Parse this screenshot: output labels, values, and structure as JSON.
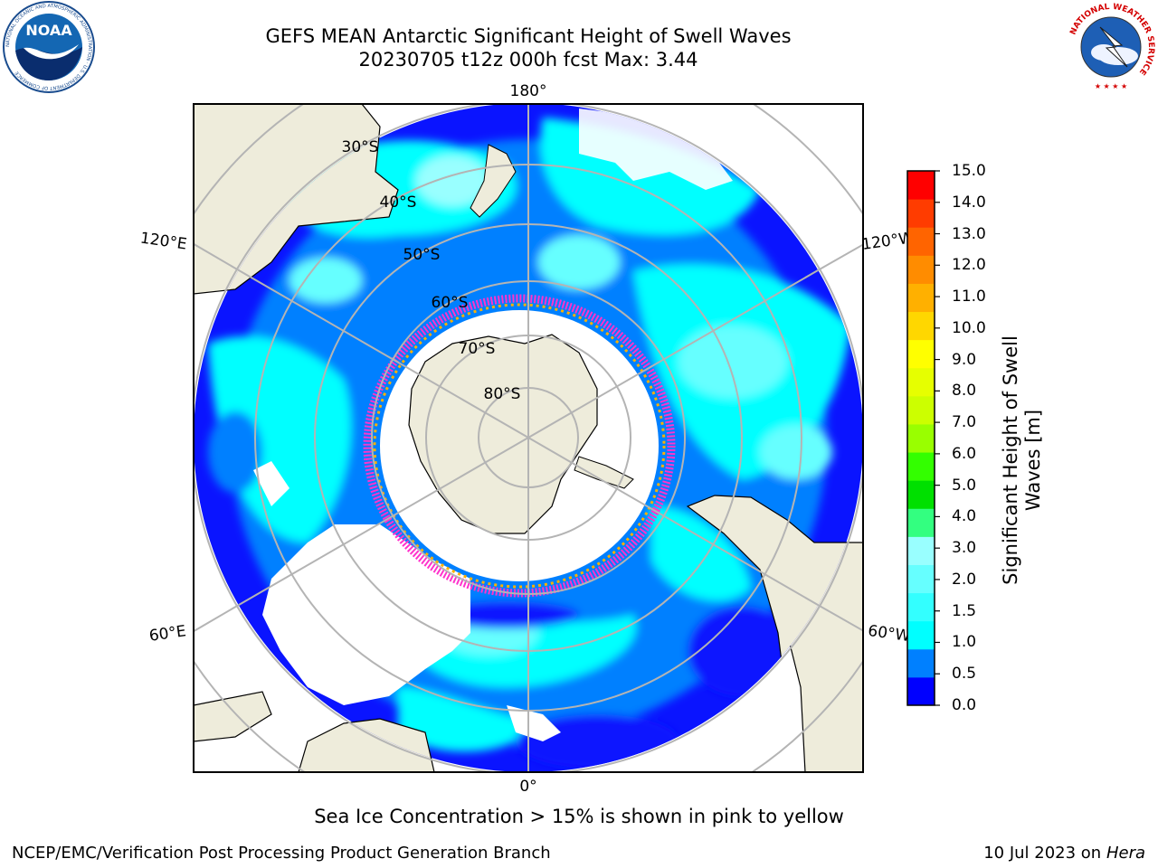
{
  "header": {
    "title_line1": "GEFS MEAN Antarctic Significant Height of Swell Waves",
    "title_line2": "20230705 t12z 000h fcst   Max: 3.44"
  },
  "logos": {
    "left": "noaa-logo",
    "left_text": "NOAA",
    "left_ring_text": "NATIONAL OCEANIC AND ATMOSPHERIC ADMINISTRATION · U.S. DEPARTMENT OF COMMERCE",
    "right": "national-weather-service-logo",
    "right_ring_text": "NATIONAL WEATHER SERVICE"
  },
  "map": {
    "projection": "south-polar-stereographic",
    "longitude_labels": {
      "top": "180°",
      "upper_left": "120°E",
      "upper_right": "120°W",
      "lower_left": "60°E",
      "lower_right": "60°W",
      "bottom": "0°"
    },
    "latitude_labels": [
      "30°S",
      "40°S",
      "50°S",
      "60°S",
      "70°S",
      "80°S"
    ],
    "colors": {
      "land": "#eeecdb",
      "ocean_no_data": "#ffffff",
      "graticule": "#b4b4b4"
    }
  },
  "colorbar": {
    "title_line1": "Significant Height of Swell",
    "title_line2": "Waves [m]",
    "ticks": [
      "15.0",
      "14.0",
      "13.0",
      "12.0",
      "11.0",
      "10.0",
      "9.0",
      "8.0",
      "7.0",
      "6.0",
      "5.0",
      "4.0",
      "3.0",
      "2.0",
      "1.5",
      "1.0",
      "0.5",
      "0.0"
    ],
    "colors_bottom_to_top": [
      "#0000ff",
      "#0080ff",
      "#00ffff",
      "#33ffff",
      "#66ffff",
      "#99ffff",
      "#33ff80",
      "#00e000",
      "#33ff00",
      "#99ff00",
      "#ccff00",
      "#e6ff00",
      "#ffff00",
      "#ffd700",
      "#ffb000",
      "#ff8c00",
      "#ff6400",
      "#ff3c00",
      "#ff0000"
    ]
  },
  "legend_values": {
    "seasonal_max_swell_height_m": 3.44
  },
  "captions": {
    "sea_ice": "Sea Ice Concentration > 15% is shown in pink to yellow"
  },
  "footer": {
    "left": "NCEP/EMC/Verification Post Processing Product Generation Branch",
    "right_prefix": "10 Jul 2023 on ",
    "right_machine": "Hera"
  }
}
